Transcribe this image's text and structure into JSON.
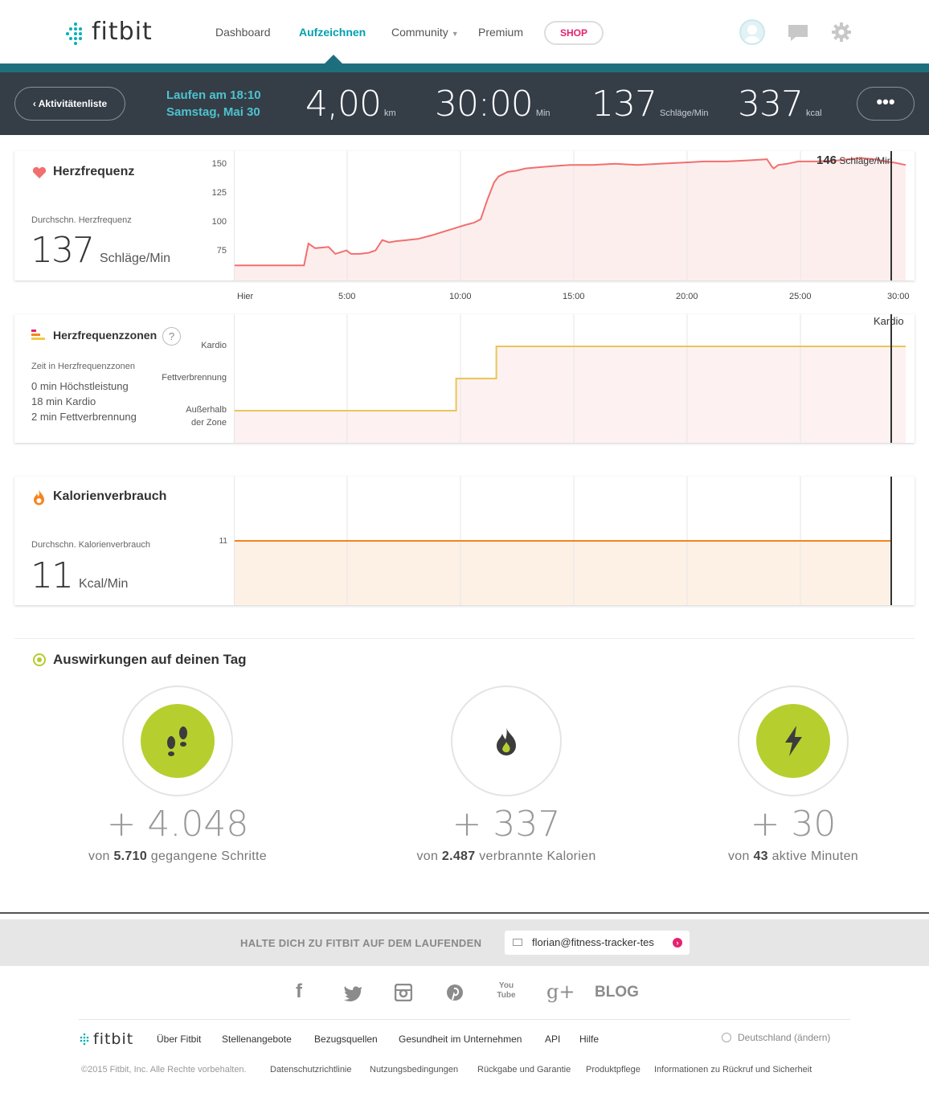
{
  "header": {
    "logo_text": "fitbit",
    "nav": [
      "Dashboard",
      "Aufzeichnen",
      "Community",
      "Premium"
    ],
    "shop_label": "SHOP",
    "brand_color": "#00b0b9",
    "accent_color": "#e5226f"
  },
  "summary": {
    "back_label": "Aktivitätenliste",
    "activity_line1": "Laufen am 18:10",
    "activity_line2": "Samstag, Mai 30",
    "distance": "4,00",
    "distance_unit": "km",
    "duration": "30:00",
    "duration_unit": "Min",
    "heart_rate": "137",
    "heart_rate_unit": "Schläge/Min",
    "calories": "337",
    "calories_unit": "kcal",
    "more_label": "•••"
  },
  "heart": {
    "title": "Herzfrequenz",
    "avg_label": "Durchschn. Herzfrequenz",
    "avg_value": "137",
    "avg_unit": "Schläge/Min",
    "cursor_value": "146",
    "cursor_unit": "Schläge/Min"
  },
  "zones": {
    "title": "Herzfrequenzzonen",
    "help": "?",
    "time_label": "Zeit in Herzfrequenzzonen",
    "lines": [
      "0 min Höchstleistung",
      "18 min Kardio",
      "2 min Fettverbrennung"
    ],
    "cursor_label": "Kardio",
    "y_labels": [
      "Kardio",
      "Fettverbrennung",
      "Außerhalb",
      "der Zone"
    ]
  },
  "calories": {
    "title": "Kalorienverbrauch",
    "avg_label": "Durchschn. Kalorienverbrauch",
    "avg_value": "11",
    "avg_unit": "Kcal/Min",
    "y_label": "11"
  },
  "chart_data": [
    {
      "type": "line",
      "title": "Herzfrequenz",
      "x_ticks": [
        "Hier",
        "5:00",
        "10:00",
        "15:00",
        "20:00",
        "25:00",
        "30:00"
      ],
      "y_ticks": [
        75,
        100,
        125,
        150
      ],
      "xlim": [
        0,
        30
      ],
      "ylim": [
        50,
        162
      ],
      "grid": true,
      "series": [
        {
          "name": "",
          "color": "#f26f6f",
          "x": [
            0,
            3.1,
            3.3,
            3.6,
            4.2,
            4.5,
            5.0,
            5.2,
            5.6,
            6.0,
            6.3,
            6.6,
            6.9,
            7.2,
            7.7,
            8.2,
            8.8,
            9.3,
            9.8,
            10.3,
            10.7,
            11.0,
            11.3,
            11.6,
            11.8,
            12.2,
            12.6,
            13.0,
            13.6,
            14.2,
            15.0,
            16.0,
            17.0,
            18.0,
            19.0,
            20.0,
            21.0,
            22.0,
            23.0,
            23.8,
            24.0,
            24.1,
            24.3,
            24.7,
            25.2,
            26.0,
            27.0,
            28.0,
            28.6,
            29.1,
            29.5,
            30.0
          ],
          "y": [
            63,
            63,
            82,
            78,
            79,
            73,
            76,
            73,
            73,
            74,
            76,
            85,
            83,
            84,
            85,
            86,
            89,
            92,
            95,
            98,
            100,
            103,
            120,
            135,
            140,
            144,
            145,
            147,
            148,
            149,
            150,
            150,
            151,
            150,
            151,
            152,
            153,
            153,
            154,
            155,
            149,
            147,
            150,
            151,
            153,
            153,
            154,
            156,
            155,
            153,
            152,
            150
          ]
        }
      ]
    },
    {
      "type": "line",
      "title": "Herzfrequenzzonen",
      "y_categories": [
        "Außerhalb der Zone",
        "Fettverbrennung",
        "Kardio"
      ],
      "xlim": [
        0,
        30
      ],
      "series": [
        {
          "name": "",
          "color": "#e8c657",
          "x": [
            0,
            9.9,
            9.9,
            11.7,
            11.7,
            30
          ],
          "zone": [
            0,
            0,
            1,
            1,
            2,
            2
          ]
        }
      ]
    },
    {
      "type": "area",
      "title": "Kalorienverbrauch",
      "y_ticks": [
        11
      ],
      "xlim": [
        0,
        30
      ],
      "series": [
        {
          "name": "",
          "color": "#f5841f",
          "x": [
            0,
            29
          ],
          "y": [
            11,
            11
          ]
        }
      ]
    }
  ],
  "impact": {
    "title": "Auswirkungen auf deinen Tag",
    "items": [
      {
        "value": "+ 4.048",
        "pre": "von",
        "total": "5.710",
        "post": "gegangene Schritte",
        "icon": "footsteps-icon"
      },
      {
        "value": "+ 337",
        "pre": "von",
        "total": "2.487",
        "post": "verbrannte Kalorien",
        "icon": "flame-icon"
      },
      {
        "value": "+ 30",
        "pre": "von",
        "total": "43",
        "post": "aktive Minuten",
        "icon": "lightning-icon"
      }
    ],
    "accent": "#b6cf2f"
  },
  "footer": {
    "newsletter_text": "HALTE DICH ZU FITBIT AUF DEM LAUFENDEN",
    "newsletter_value": "florian@fitness-tracker-tes",
    "social": [
      "f",
      "t",
      "i",
      "p",
      "You Tube",
      "g+"
    ],
    "blog": "BLOG",
    "logo_text": "fitbit",
    "links": [
      "Über Fitbit",
      "Stellenangebote",
      "Bezugsquellen",
      "Gesundheit im Unternehmen",
      "API",
      "Hilfe"
    ],
    "country": "Deutschland (ändern)",
    "copyright": "©2015 Fitbit, Inc. Alle Rechte vorbehalten.",
    "legal": [
      "Datenschutzrichtlinie",
      "Nutzungsbedingungen",
      "Rückgabe und Garantie",
      "Produktpflege",
      "Informationen zu Rückruf und Sicherheit"
    ]
  }
}
